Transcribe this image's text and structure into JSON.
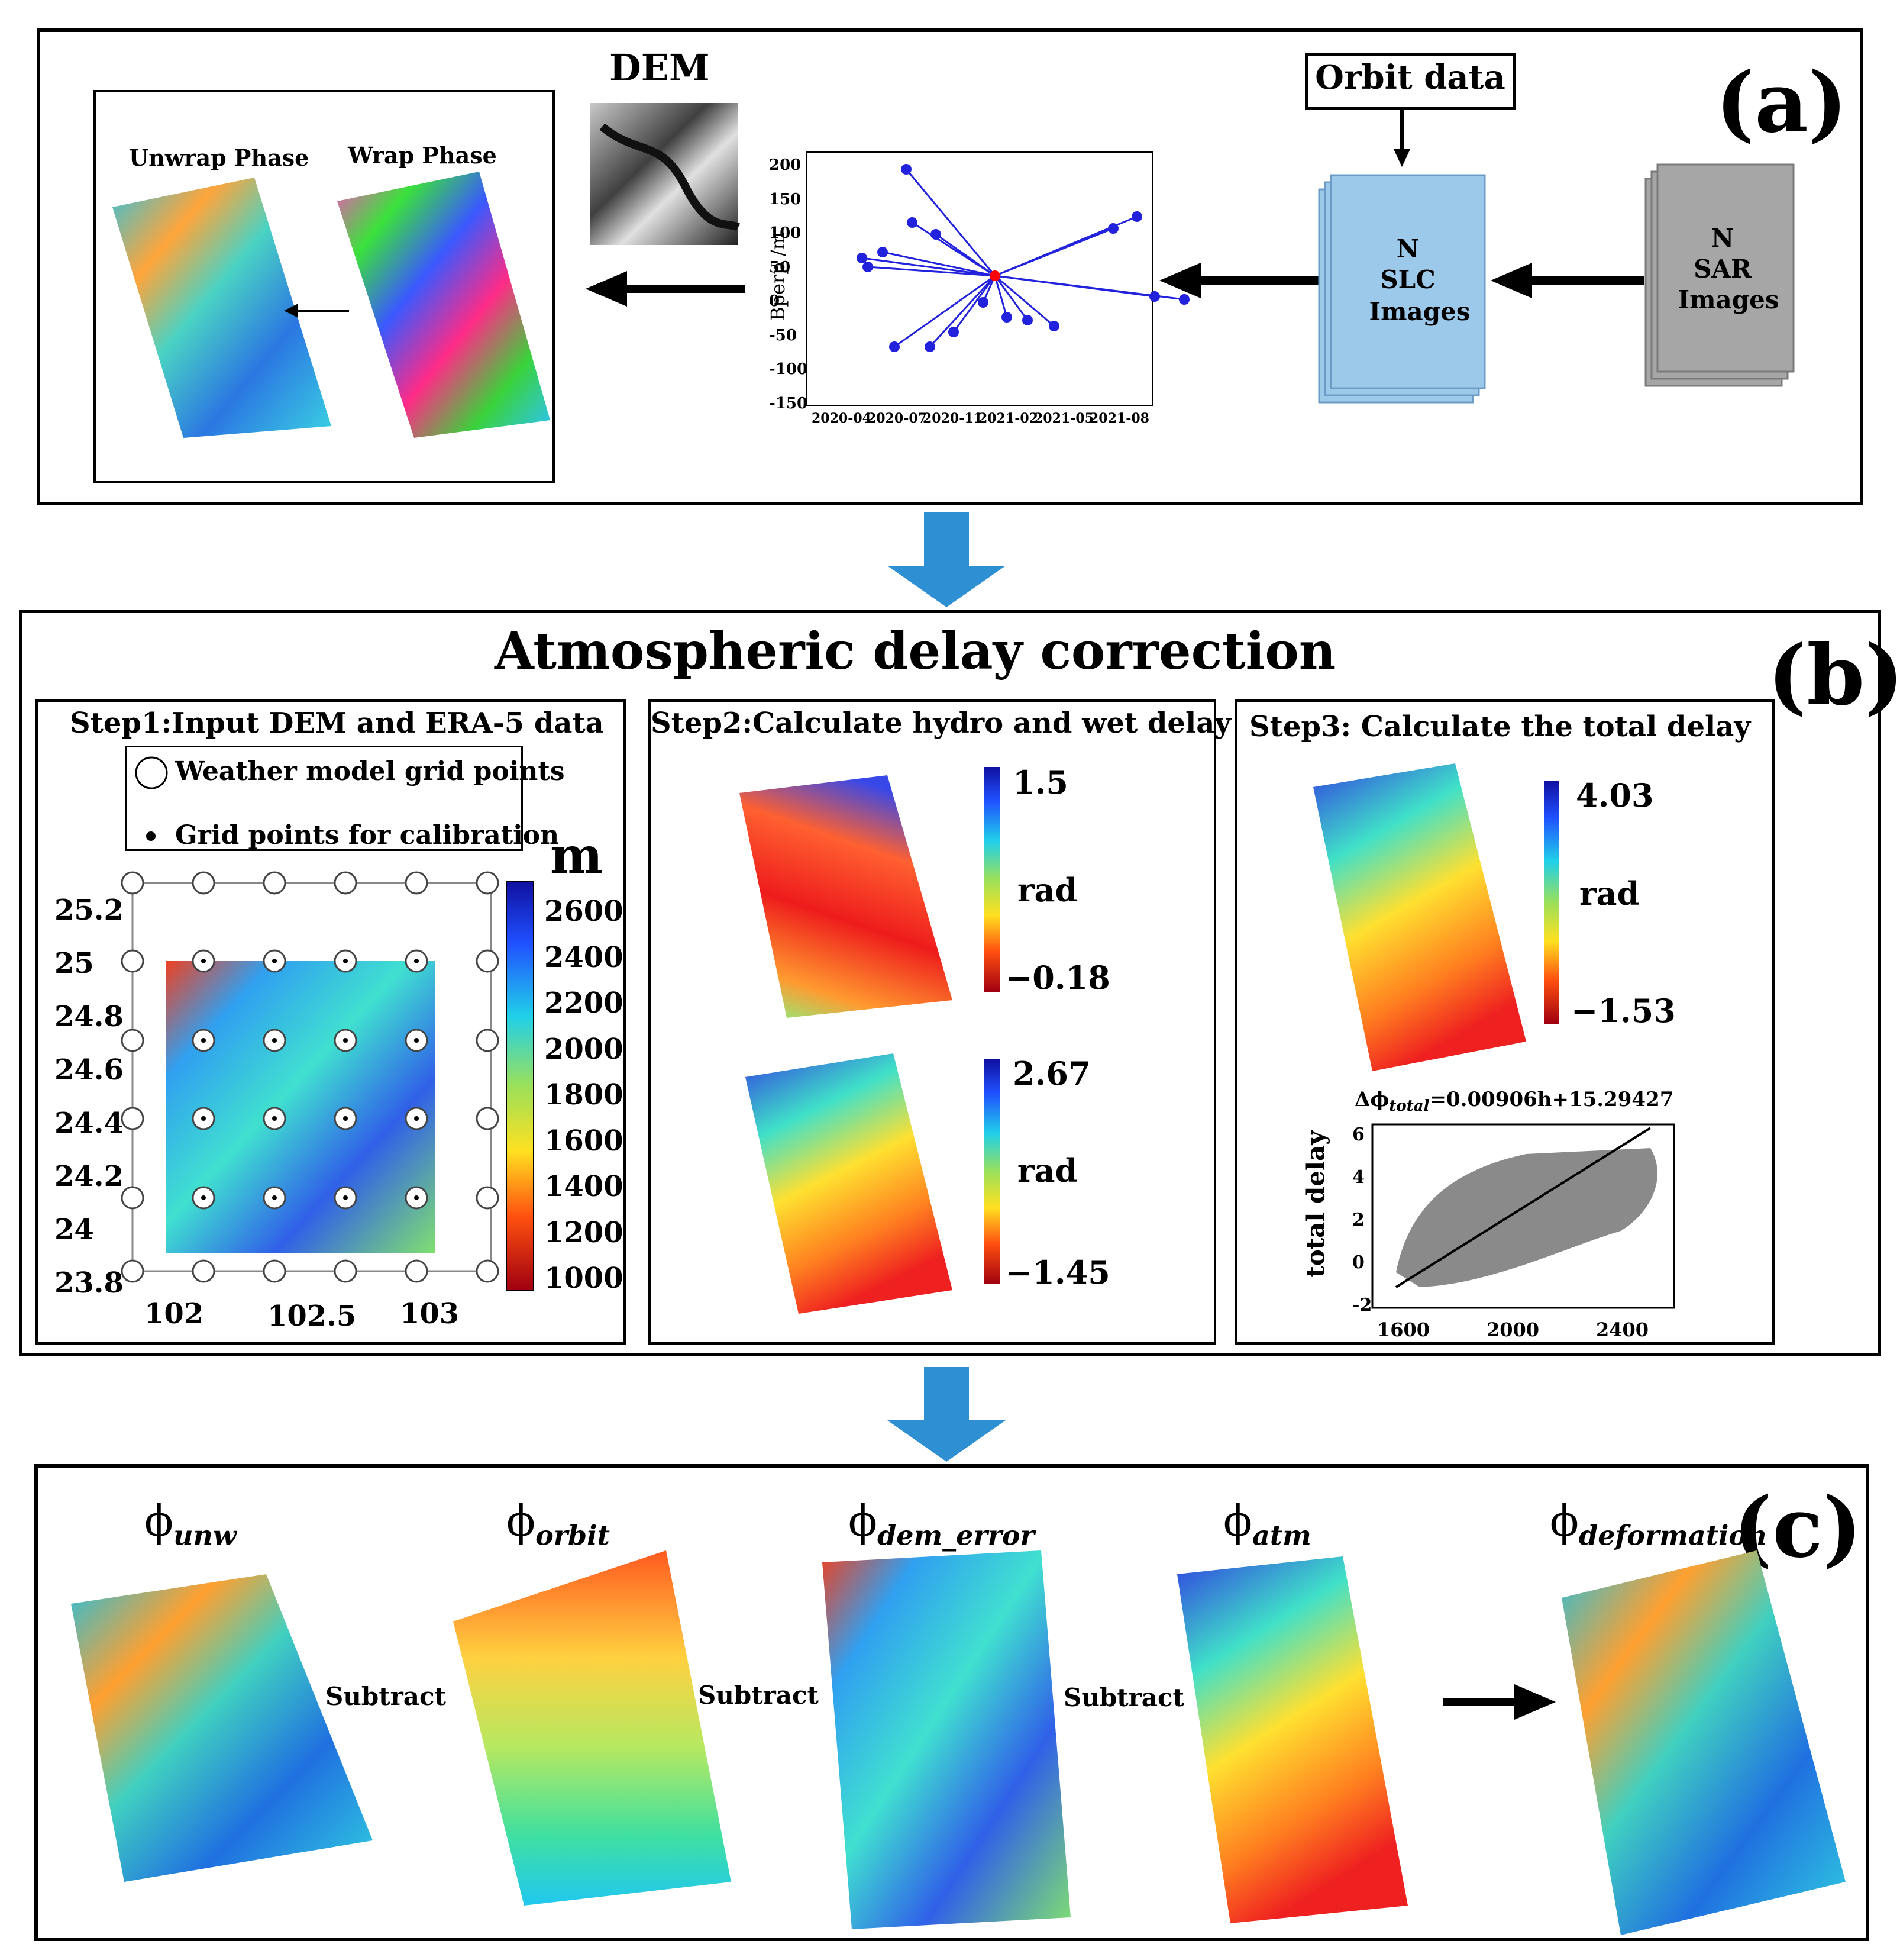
{
  "panel_a": {
    "label": "(a)",
    "phase_box": {
      "unwrap_label": "Unwrap Phase",
      "wrap_label": "Wrap Phase"
    },
    "dem_label": "DEM",
    "orbit_label": "Orbit data",
    "slc_label": [
      "N",
      "SLC",
      "Images"
    ],
    "sar_label": [
      "N",
      "SAR",
      "Images"
    ],
    "baseline_chart": {
      "type": "scatter",
      "ylabel": "Bperp /m",
      "xlabel": "",
      "yticks": [
        "200",
        "150",
        "100",
        "50",
        "0",
        "-50",
        "-100",
        "-150"
      ],
      "xticks": [
        "2020-04",
        "2020-07",
        "2020-11",
        "2021-02",
        "2021-05",
        "2021-08"
      ]
    }
  },
  "panel_b": {
    "label": "(b)",
    "title": "Atmospheric delay correction",
    "step1": {
      "title": "Step1:Input DEM and  ERA-5 data",
      "legend_open": "Weather model grid points",
      "legend_dot": "Grid points for calibration",
      "unit": "m",
      "yticks": [
        "25.2",
        "25",
        "24.8",
        "24.6",
        "24.4",
        "24.2",
        "24",
        "23.8"
      ],
      "xticks": [
        "102",
        "102.5",
        "103"
      ],
      "cbar_ticks": [
        "2600",
        "2400",
        "2200",
        "2000",
        "1800",
        "1600",
        "1400",
        "1200",
        "1000"
      ]
    },
    "step2": {
      "title": "Step2:Calculate  hydro and wet delay",
      "hydro": {
        "max": "1.5",
        "unit": "rad",
        "min": "−0.18"
      },
      "wet": {
        "max": "2.67",
        "unit": "rad",
        "min": "−1.45"
      }
    },
    "step3": {
      "title": "Step3:  Calculate   the  total  delay",
      "total": {
        "max": "4.03",
        "unit": "rad",
        "min": "−1.53"
      },
      "equation_prefix": "Δϕ",
      "equation_sub": "total",
      "equation_rest": "=0.00906h+15.29427",
      "scatter_ylabel": "total   delay",
      "yticks": [
        "6",
        "4",
        "2",
        "0",
        "-2"
      ],
      "xticks": [
        "1600",
        "2000",
        "2400"
      ]
    }
  },
  "panel_c": {
    "label": "(c)",
    "terms": [
      {
        "symbol": "ϕ",
        "sub": "unw"
      },
      {
        "symbol": "ϕ",
        "sub": "orbit"
      },
      {
        "symbol": "ϕ",
        "sub": "dem_error"
      },
      {
        "symbol": "ϕ",
        "sub": "atm"
      },
      {
        "symbol": "ϕ",
        "sub": "deformation"
      }
    ],
    "ops": [
      "Subtract",
      "Subtract",
      "Subtract"
    ]
  },
  "colors": {
    "slc_fill": "#9cc8ea",
    "sar_fill": "#a6a6a6",
    "flow_arrow": "#2e8fd3",
    "baseline_line": "#2222dd",
    "baseline_center": "#ff0000",
    "scatter_fill": "#8a8a8a"
  }
}
